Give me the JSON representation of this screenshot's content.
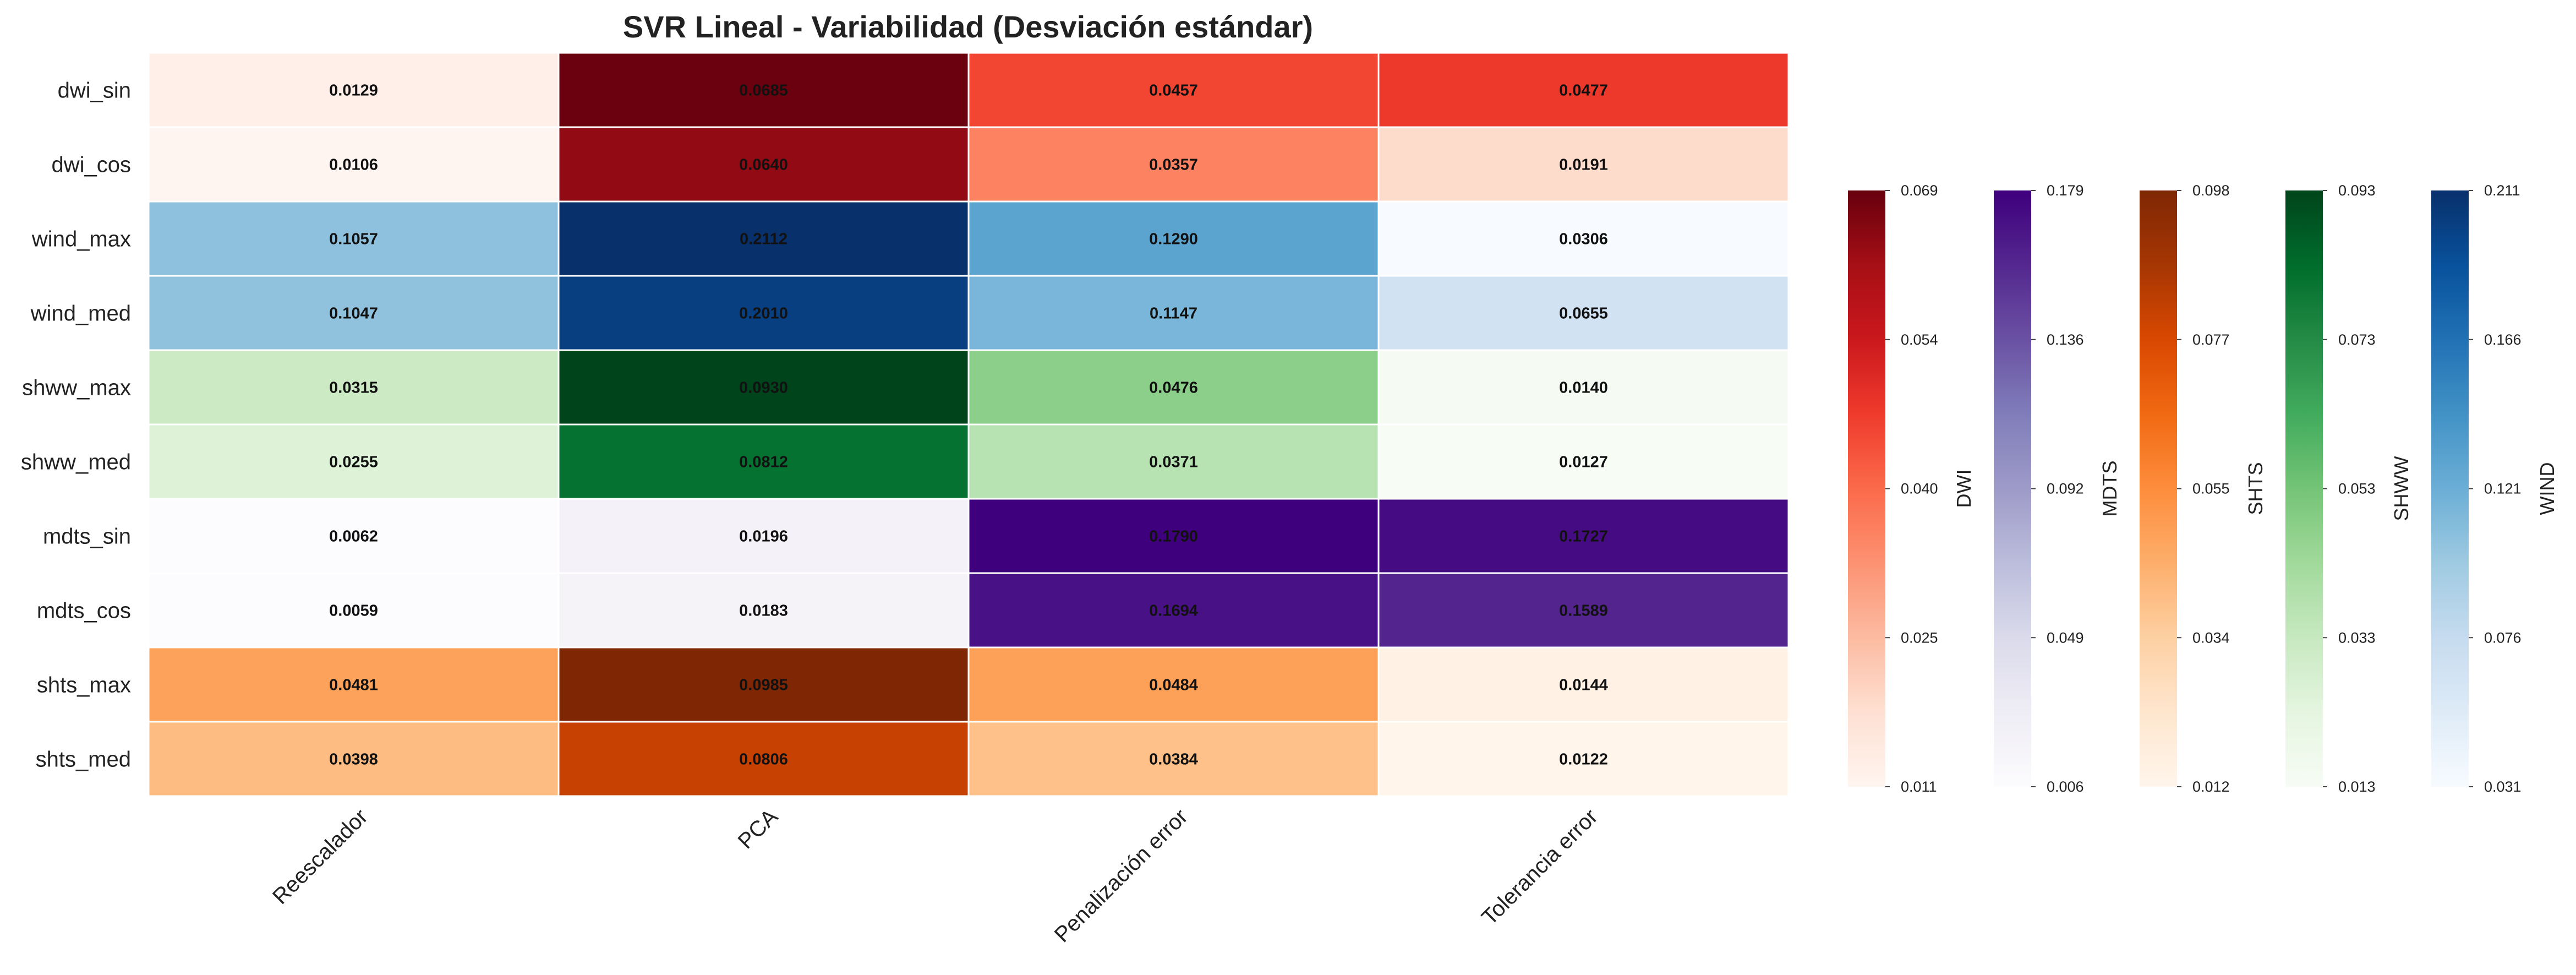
{
  "chart_data": {
    "type": "heatmap",
    "title": "SVR Lineal - Variabilidad (Desviación estándar)",
    "rows": [
      "dwi_sin",
      "dwi_cos",
      "wind_max",
      "wind_med",
      "shww_max",
      "shww_med",
      "mdts_sin",
      "mdts_cos",
      "shts_max",
      "shts_med"
    ],
    "columns": [
      "Reescalador",
      "PCA",
      "Penalización error",
      "Tolerancia error"
    ],
    "row_groups": [
      "DWI",
      "DWI",
      "WIND",
      "WIND",
      "SHWW",
      "SHWW",
      "MDTS",
      "MDTS",
      "SHTS",
      "SHTS"
    ],
    "values": [
      [
        "0.0129",
        "0.0685",
        "0.0457",
        "0.0477"
      ],
      [
        "0.0106",
        "0.0640",
        "0.0357",
        "0.0191"
      ],
      [
        "0.1057",
        "0.2112",
        "0.1290",
        "0.0306"
      ],
      [
        "0.1047",
        "0.2010",
        "0.1147",
        "0.0655"
      ],
      [
        "0.0315",
        "0.0930",
        "0.0476",
        "0.0140"
      ],
      [
        "0.0255",
        "0.0812",
        "0.0371",
        "0.0127"
      ],
      [
        "0.0062",
        "0.0196",
        "0.1790",
        "0.1727"
      ],
      [
        "0.0059",
        "0.0183",
        "0.1694",
        "0.1589"
      ],
      [
        "0.0481",
        "0.0985",
        "0.0484",
        "0.0144"
      ],
      [
        "0.0398",
        "0.0806",
        "0.0384",
        "0.0122"
      ]
    ],
    "colorbars": [
      {
        "name": "DWI",
        "colormap": "Reds",
        "min": 0.011,
        "max": 0.069,
        "ticks": [
          "0.011",
          "0.025",
          "0.040",
          "0.054",
          "0.069"
        ]
      },
      {
        "name": "MDTS",
        "colormap": "Purples",
        "min": 0.006,
        "max": 0.179,
        "ticks": [
          "0.006",
          "0.049",
          "0.092",
          "0.136",
          "0.179"
        ]
      },
      {
        "name": "SHTS",
        "colormap": "Oranges",
        "min": 0.012,
        "max": 0.098,
        "ticks": [
          "0.012",
          "0.034",
          "0.055",
          "0.077",
          "0.098"
        ]
      },
      {
        "name": "SHWW",
        "colormap": "Greens",
        "min": 0.013,
        "max": 0.093,
        "ticks": [
          "0.013",
          "0.033",
          "0.053",
          "0.073",
          "0.093"
        ]
      },
      {
        "name": "WIND",
        "colormap": "Blues",
        "min": 0.031,
        "max": 0.211,
        "ticks": [
          "0.031",
          "0.076",
          "0.121",
          "0.166",
          "0.211"
        ]
      }
    ],
    "colormaps": {
      "Reds": [
        "#fff5f0",
        "#fee0d2",
        "#fcbba1",
        "#fc9272",
        "#fb6a4a",
        "#ef3b2c",
        "#cb181d",
        "#a50f15",
        "#67000d"
      ],
      "Purples": [
        "#fcfbfd",
        "#efedf5",
        "#dadaeb",
        "#bcbddc",
        "#9e9ac8",
        "#807dba",
        "#6a51a3",
        "#54278f",
        "#3f007d"
      ],
      "Oranges": [
        "#fff5eb",
        "#fee6ce",
        "#fdd0a2",
        "#fdae6b",
        "#fd8d3c",
        "#f16913",
        "#d94801",
        "#a63603",
        "#7f2704"
      ],
      "Greens": [
        "#f7fcf5",
        "#e5f5e0",
        "#c7e9c0",
        "#a1d99b",
        "#74c476",
        "#41ab5d",
        "#238b45",
        "#006d2c",
        "#00441b"
      ],
      "Blues": [
        "#f7fbff",
        "#deebf7",
        "#c6dbef",
        "#9ecae1",
        "#6baed6",
        "#4292c6",
        "#2171b5",
        "#08519c",
        "#08306b"
      ]
    }
  }
}
